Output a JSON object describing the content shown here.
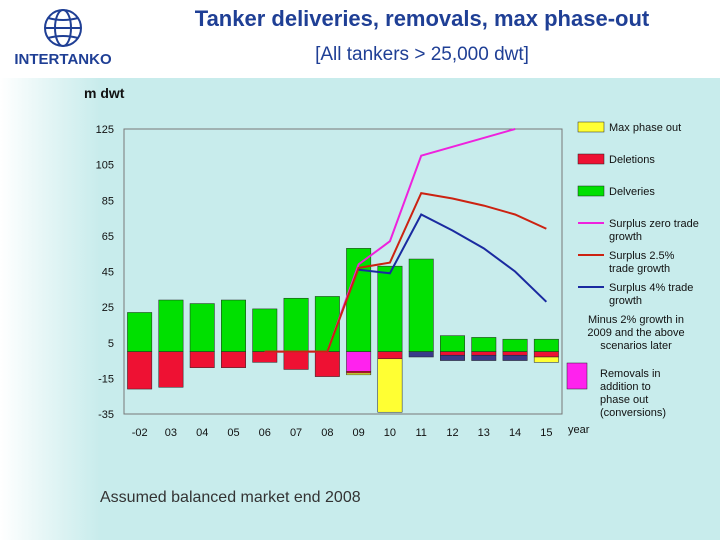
{
  "header": {
    "logo_text": "INTERTANKO",
    "title": "Tanker deliveries, removals, max phase-out",
    "subtitle": "[All tankers > 25,000 dwt]"
  },
  "footnote": "Assumed balanced market end 2008",
  "colors": {
    "deliveries": "#00e000",
    "deletions": "#ee1133",
    "max_phase_out": "#ffff33",
    "removals_in_addition": "#ff22ee",
    "surplus_zero": "#ee22dd",
    "surplus_2_5": "#cc2211",
    "surplus_4": "#1a2aa0",
    "minus_2": "#3a3a8a"
  },
  "chart_data": {
    "type": "bar",
    "title": "",
    "ylabel": "m dwt",
    "xlabel": "year",
    "categories": [
      "-02",
      "03",
      "04",
      "05",
      "06",
      "07",
      "08",
      "09",
      "10",
      "11",
      "12",
      "13",
      "14",
      "15"
    ],
    "yticks": [
      125,
      105,
      85,
      65,
      45,
      25,
      5,
      -15,
      -35
    ],
    "ylim": [
      -35,
      125
    ],
    "grid": false,
    "legend_position": "right",
    "bars": {
      "deliveries": [
        22,
        29,
        27,
        29,
        24,
        30,
        31,
        58,
        48,
        52,
        9,
        8,
        7,
        7
      ],
      "deletions": [
        -21,
        -20,
        -9,
        -9,
        -6,
        -10,
        -14,
        -1,
        -4,
        0,
        -2,
        -2,
        -2,
        -3
      ],
      "max_phase_out": [
        0,
        0,
        0,
        0,
        0,
        0,
        0,
        -1,
        -30,
        0,
        0,
        0,
        0,
        -3
      ],
      "removals_in_addition": [
        0,
        0,
        0,
        0,
        0,
        0,
        0,
        -11,
        0,
        0,
        0,
        0,
        0,
        0
      ],
      "minus_2": [
        0,
        0,
        0,
        0,
        0,
        0,
        0,
        0,
        0,
        -3,
        -3,
        -3,
        -3,
        0
      ]
    },
    "lines": [
      {
        "key": "surplus_zero",
        "name": "Surplus zero trade growth",
        "x": [
          "06",
          "07",
          "08",
          "09",
          "10",
          "11",
          "14"
        ],
        "y": [
          0,
          0,
          0,
          49,
          62,
          110,
          125
        ]
      },
      {
        "key": "surplus_2_5",
        "name": "Surplus 2.5% trade growth",
        "x": [
          "06",
          "07",
          "08",
          "09",
          "10",
          "11",
          "12",
          "13",
          "14",
          "15"
        ],
        "y": [
          0,
          0,
          0,
          47,
          50,
          89,
          86,
          82,
          77,
          69
        ]
      },
      {
        "key": "surplus_4",
        "name": "Surplus 4% trade growth",
        "x": [
          "09",
          "10",
          "11",
          "12",
          "13",
          "14",
          "15"
        ],
        "y": [
          46,
          44,
          77,
          68,
          58,
          45,
          28
        ]
      }
    ],
    "legend": [
      {
        "key": "max_phase_out",
        "label": "Max phase out",
        "kind": "box"
      },
      {
        "key": "deletions",
        "label": "Deletions",
        "kind": "box"
      },
      {
        "key": "deliveries",
        "label": "Delveries",
        "kind": "box"
      },
      {
        "key": "surplus_zero",
        "label": "Surplus zero trade growth",
        "kind": "line"
      },
      {
        "key": "surplus_2_5",
        "label": "Surplus 2.5% trade growth",
        "kind": "line"
      },
      {
        "key": "surplus_4",
        "label": "Surplus 4% trade growth",
        "kind": "line"
      },
      {
        "key": "minus_2",
        "label": "Minus 2% growth in 2009 and the above scenarios later",
        "kind": "text"
      },
      {
        "key": "removals_in_addition",
        "label": "Removals in addition to phase out (conversions)",
        "kind": "box"
      }
    ]
  }
}
